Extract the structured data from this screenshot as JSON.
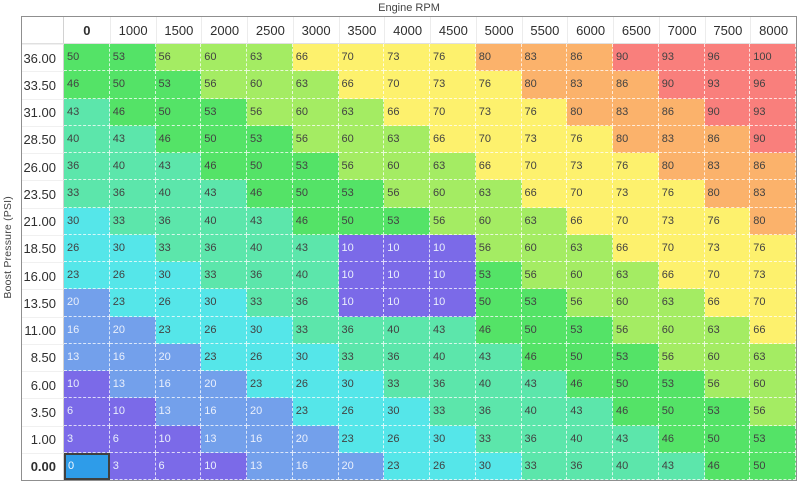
{
  "title": "Engine RPM",
  "y_axis_label": "Boost Pressure (PSI)",
  "columns": [
    "0",
    "1000",
    "1500",
    "2000",
    "2500",
    "3000",
    "3500",
    "4000",
    "4500",
    "5000",
    "5500",
    "6000",
    "6500",
    "7000",
    "7500",
    "8000"
  ],
  "rows": [
    {
      "label": "36.00",
      "values": [
        50,
        53,
        56,
        60,
        63,
        66,
        70,
        73,
        76,
        80,
        83,
        86,
        90,
        93,
        96,
        100
      ]
    },
    {
      "label": "33.50",
      "values": [
        46,
        50,
        53,
        56,
        60,
        63,
        66,
        70,
        73,
        76,
        80,
        83,
        86,
        90,
        93,
        96
      ]
    },
    {
      "label": "31.00",
      "values": [
        43,
        46,
        50,
        53,
        56,
        60,
        63,
        66,
        70,
        73,
        76,
        80,
        83,
        86,
        90,
        93
      ]
    },
    {
      "label": "28.50",
      "values": [
        40,
        43,
        46,
        50,
        53,
        56,
        60,
        63,
        66,
        70,
        73,
        76,
        80,
        83,
        86,
        90
      ]
    },
    {
      "label": "26.00",
      "values": [
        36,
        40,
        43,
        46,
        50,
        53,
        56,
        60,
        63,
        66,
        70,
        73,
        76,
        80,
        83,
        86
      ]
    },
    {
      "label": "23.50",
      "values": [
        33,
        36,
        40,
        43,
        46,
        50,
        53,
        56,
        60,
        63,
        66,
        70,
        73,
        76,
        80,
        83
      ]
    },
    {
      "label": "21.00",
      "values": [
        30,
        33,
        36,
        40,
        43,
        46,
        50,
        53,
        56,
        60,
        63,
        66,
        70,
        73,
        76,
        80
      ]
    },
    {
      "label": "18.50",
      "values": [
        26,
        30,
        33,
        36,
        40,
        43,
        10,
        10,
        10,
        56,
        60,
        63,
        66,
        70,
        73,
        76
      ]
    },
    {
      "label": "16.00",
      "values": [
        23,
        26,
        30,
        33,
        36,
        40,
        10,
        10,
        10,
        53,
        56,
        60,
        63,
        66,
        70,
        73
      ]
    },
    {
      "label": "13.50",
      "values": [
        20,
        23,
        26,
        30,
        33,
        36,
        10,
        10,
        10,
        50,
        53,
        56,
        60,
        63,
        66,
        70
      ]
    },
    {
      "label": "11.00",
      "values": [
        16,
        20,
        23,
        26,
        30,
        33,
        36,
        40,
        43,
        46,
        50,
        53,
        56,
        60,
        63,
        66
      ]
    },
    {
      "label": "8.50",
      "values": [
        13,
        16,
        20,
        23,
        26,
        30,
        33,
        36,
        40,
        43,
        46,
        50,
        53,
        56,
        60,
        63
      ]
    },
    {
      "label": "6.00",
      "values": [
        10,
        13,
        16,
        20,
        23,
        26,
        30,
        33,
        36,
        40,
        43,
        46,
        50,
        53,
        56,
        60
      ]
    },
    {
      "label": "3.50",
      "values": [
        6,
        10,
        13,
        16,
        20,
        23,
        26,
        30,
        33,
        36,
        40,
        43,
        46,
        50,
        53,
        56
      ]
    },
    {
      "label": "1.00",
      "values": [
        3,
        6,
        10,
        13,
        16,
        20,
        23,
        26,
        30,
        33,
        36,
        40,
        43,
        46,
        50,
        53
      ]
    },
    {
      "label": "0.00",
      "values": [
        0,
        3,
        6,
        10,
        13,
        16,
        20,
        23,
        26,
        30,
        33,
        36,
        40,
        43,
        46,
        50
      ]
    }
  ],
  "selected": {
    "row_label": "0.00",
    "col_label": "0",
    "value": 0
  },
  "colors": {
    "scale": [
      {
        "max": 10,
        "bg": "#7b6ae8",
        "text": "light"
      },
      {
        "max": 20,
        "bg": "#73a0eb",
        "text": "light"
      },
      {
        "max": 30,
        "bg": "#55e6e9",
        "text": "dark"
      },
      {
        "max": 43,
        "bg": "#5ce6ab",
        "text": "dark"
      },
      {
        "max": 53,
        "bg": "#54e367",
        "text": "dark"
      },
      {
        "max": 63,
        "bg": "#a4ec63",
        "text": "dark"
      },
      {
        "max": 76,
        "bg": "#fdf16d",
        "text": "dark"
      },
      {
        "max": 86,
        "bg": "#fbb26b",
        "text": "dark"
      },
      {
        "max": 100,
        "bg": "#f97f7c",
        "text": "dark"
      }
    ],
    "selected_bg": "#2e9ce9",
    "selected_border": "#404040"
  }
}
